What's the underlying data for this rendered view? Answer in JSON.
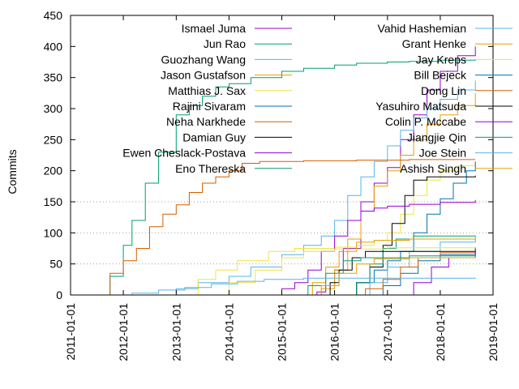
{
  "chart_data": {
    "type": "line",
    "ylabel": "Commits",
    "xlabel": "",
    "title": "",
    "ylim": [
      0,
      450
    ],
    "xlim": [
      "2011-01-01",
      "2019-01-01"
    ],
    "y_ticks": [
      0,
      50,
      100,
      150,
      200,
      250,
      300,
      350,
      400,
      450
    ],
    "x_ticks": [
      "2011-01-01",
      "2012-01-01",
      "2013-01-01",
      "2014-01-01",
      "2015-01-01",
      "2016-01-01",
      "2017-01-01",
      "2018-01-01",
      "2019-01-01"
    ],
    "grid": "horizontal dotted at 50, 100, 150",
    "legend_position": "top, two columns",
    "series": [
      {
        "name": "Ismael Juma",
        "color": "#9400d3",
        "points": [
          [
            "2015-06-01",
            0
          ],
          [
            "2015-09-01",
            5
          ],
          [
            "2015-11-01",
            15
          ],
          [
            "2016-01-01",
            40
          ],
          [
            "2016-03-01",
            75
          ],
          [
            "2016-07-01",
            150
          ],
          [
            "2016-10-01",
            180
          ],
          [
            "2017-01-01",
            205
          ],
          [
            "2017-04-01",
            250
          ],
          [
            "2017-07-01",
            290
          ],
          [
            "2017-10-01",
            330
          ],
          [
            "2018-01-01",
            360
          ],
          [
            "2018-05-01",
            385
          ],
          [
            "2018-09-01",
            400
          ]
        ]
      },
      {
        "name": "Jun Rao",
        "color": "#009e73",
        "points": [
          [
            "2011-07-15",
            0
          ],
          [
            "2011-10-01",
            30
          ],
          [
            "2012-01-01",
            80
          ],
          [
            "2012-03-01",
            120
          ],
          [
            "2012-06-01",
            180
          ],
          [
            "2012-09-01",
            230
          ],
          [
            "2013-01-01",
            290
          ],
          [
            "2013-04-01",
            305
          ],
          [
            "2013-07-01",
            320
          ],
          [
            "2013-10-01",
            335
          ],
          [
            "2014-01-01",
            340
          ],
          [
            "2014-06-01",
            350
          ],
          [
            "2015-01-01",
            360
          ],
          [
            "2015-06-01",
            365
          ],
          [
            "2016-01-01",
            370
          ],
          [
            "2016-06-01",
            373
          ],
          [
            "2017-01-01",
            375
          ],
          [
            "2017-06-01",
            376
          ],
          [
            "2018-01-01",
            378
          ],
          [
            "2018-09-01",
            380
          ]
        ]
      },
      {
        "name": "Guozhang Wang",
        "color": "#56b4e9",
        "points": [
          [
            "2012-08-01",
            0
          ],
          [
            "2013-01-01",
            10
          ],
          [
            "2013-06-01",
            20
          ],
          [
            "2014-01-01",
            30
          ],
          [
            "2014-06-01",
            45
          ],
          [
            "2015-01-01",
            65
          ],
          [
            "2015-06-01",
            80
          ],
          [
            "2015-10-01",
            95
          ],
          [
            "2016-01-01",
            120
          ],
          [
            "2016-04-01",
            160
          ],
          [
            "2016-07-01",
            190
          ],
          [
            "2016-10-01",
            215
          ],
          [
            "2017-01-01",
            240
          ],
          [
            "2017-04-01",
            265
          ],
          [
            "2017-07-01",
            285
          ],
          [
            "2017-10-01",
            300
          ],
          [
            "2018-01-01",
            315
          ],
          [
            "2018-05-01",
            330
          ],
          [
            "2018-09-01",
            345
          ]
        ]
      },
      {
        "name": "Jason Gustafson",
        "color": "#e69f00",
        "points": [
          [
            "2015-08-01",
            0
          ],
          [
            "2015-10-01",
            10
          ],
          [
            "2016-01-01",
            40
          ],
          [
            "2016-04-01",
            90
          ],
          [
            "2016-07-01",
            135
          ],
          [
            "2016-10-01",
            175
          ],
          [
            "2017-01-01",
            200
          ],
          [
            "2017-04-01",
            225
          ],
          [
            "2017-07-01",
            250
          ],
          [
            "2017-10-01",
            275
          ],
          [
            "2018-01-01",
            290
          ],
          [
            "2018-05-01",
            305
          ],
          [
            "2018-09-01",
            325
          ]
        ]
      },
      {
        "name": "Matthias J. Sax",
        "color": "#f0e442",
        "points": [
          [
            "2013-03-01",
            0
          ],
          [
            "2013-06-01",
            25
          ],
          [
            "2013-10-01",
            40
          ],
          [
            "2014-03-01",
            55
          ],
          [
            "2014-10-01",
            70
          ],
          [
            "2015-04-01",
            75
          ],
          [
            "2016-01-01",
            77
          ],
          [
            "2016-06-01",
            80
          ],
          [
            "2016-10-01",
            88
          ],
          [
            "2017-01-01",
            100
          ],
          [
            "2017-04-01",
            130
          ],
          [
            "2017-07-01",
            160
          ],
          [
            "2017-10-01",
            185
          ],
          [
            "2018-01-01",
            200
          ],
          [
            "2018-05-01",
            208
          ],
          [
            "2018-09-01",
            215
          ]
        ]
      },
      {
        "name": "Rajini Sivaram",
        "color": "#0072b2",
        "points": [
          [
            "2016-02-01",
            0
          ],
          [
            "2016-06-01",
            20
          ],
          [
            "2016-10-01",
            40
          ],
          [
            "2017-01-01",
            55
          ],
          [
            "2017-04-01",
            70
          ],
          [
            "2017-07-01",
            100
          ],
          [
            "2017-10-01",
            130
          ],
          [
            "2018-01-01",
            155
          ],
          [
            "2018-04-01",
            180
          ],
          [
            "2018-07-01",
            200
          ],
          [
            "2018-09-01",
            215
          ]
        ]
      },
      {
        "name": "Neha Narkhede",
        "color": "#d55e00",
        "points": [
          [
            "2011-07-15",
            0
          ],
          [
            "2011-10-01",
            35
          ],
          [
            "2012-01-01",
            55
          ],
          [
            "2012-04-01",
            75
          ],
          [
            "2012-07-01",
            110
          ],
          [
            "2012-10-01",
            130
          ],
          [
            "2013-01-01",
            145
          ],
          [
            "2013-04-01",
            165
          ],
          [
            "2013-07-01",
            180
          ],
          [
            "2013-10-01",
            190
          ],
          [
            "2014-01-01",
            200
          ],
          [
            "2014-04-01",
            212
          ],
          [
            "2014-08-01",
            215
          ],
          [
            "2015-06-01",
            216
          ],
          [
            "2016-06-01",
            217
          ],
          [
            "2017-06-01",
            218
          ],
          [
            "2018-09-01",
            218
          ]
        ]
      },
      {
        "name": "Damian Guy",
        "color": "#000000",
        "points": [
          [
            "2016-04-01",
            0
          ],
          [
            "2016-06-01",
            20
          ],
          [
            "2016-09-01",
            45
          ],
          [
            "2016-12-01",
            80
          ],
          [
            "2017-02-01",
            115
          ],
          [
            "2017-05-01",
            160
          ],
          [
            "2017-07-01",
            185
          ],
          [
            "2017-10-01",
            190
          ],
          [
            "2018-09-01",
            192
          ]
        ]
      },
      {
        "name": "Ewen Cheslack-Postava",
        "color": "#9400d3",
        "points": [
          [
            "2014-08-01",
            0
          ],
          [
            "2015-01-01",
            10
          ],
          [
            "2015-04-01",
            20
          ],
          [
            "2015-07-01",
            40
          ],
          [
            "2015-10-01",
            70
          ],
          [
            "2016-01-01",
            95
          ],
          [
            "2016-04-01",
            120
          ],
          [
            "2016-07-01",
            135
          ],
          [
            "2016-10-01",
            140
          ],
          [
            "2017-01-01",
            143
          ],
          [
            "2017-06-01",
            146
          ],
          [
            "2018-01-01",
            149
          ],
          [
            "2018-09-01",
            153
          ]
        ]
      },
      {
        "name": "Eno Thereska",
        "color": "#009e73",
        "points": [
          [
            "2016-03-01",
            0
          ],
          [
            "2016-06-01",
            20
          ],
          [
            "2016-09-01",
            50
          ],
          [
            "2016-12-01",
            75
          ],
          [
            "2017-03-01",
            90
          ],
          [
            "2017-07-01",
            95
          ],
          [
            "2018-09-01",
            96
          ]
        ]
      },
      {
        "name": "Vahid Hashemian",
        "color": "#56b4e9",
        "points": [
          [
            "2016-05-01",
            0
          ],
          [
            "2016-09-01",
            20
          ],
          [
            "2017-01-01",
            45
          ],
          [
            "2017-06-01",
            70
          ],
          [
            "2018-01-01",
            85
          ],
          [
            "2018-09-01",
            95
          ]
        ]
      },
      {
        "name": "Grant Henke",
        "color": "#e69f00",
        "points": [
          [
            "2015-05-01",
            0
          ],
          [
            "2015-08-01",
            20
          ],
          [
            "2015-11-01",
            45
          ],
          [
            "2016-02-01",
            70
          ],
          [
            "2016-06-01",
            85
          ],
          [
            "2016-10-01",
            88
          ],
          [
            "2017-06-01",
            90
          ],
          [
            "2018-09-01",
            92
          ]
        ]
      },
      {
        "name": "Jay Kreps",
        "color": "#f0e442",
        "points": [
          [
            "2013-06-01",
            0
          ],
          [
            "2014-01-01",
            20
          ],
          [
            "2014-07-01",
            40
          ],
          [
            "2015-01-01",
            60
          ],
          [
            "2015-06-01",
            70
          ],
          [
            "2016-01-01",
            74
          ],
          [
            "2017-01-01",
            76
          ],
          [
            "2018-09-01",
            78
          ]
        ]
      },
      {
        "name": "Bill Bejeck",
        "color": "#0072b2",
        "points": [
          [
            "2016-08-01",
            0
          ],
          [
            "2016-12-01",
            15
          ],
          [
            "2017-04-01",
            35
          ],
          [
            "2017-08-01",
            55
          ],
          [
            "2018-01-01",
            65
          ],
          [
            "2018-09-01",
            72
          ]
        ]
      },
      {
        "name": "Dong Lin",
        "color": "#d55e00",
        "points": [
          [
            "2016-04-01",
            0
          ],
          [
            "2016-08-01",
            10
          ],
          [
            "2016-12-01",
            25
          ],
          [
            "2017-04-01",
            45
          ],
          [
            "2017-08-01",
            60
          ],
          [
            "2018-01-01",
            68
          ],
          [
            "2018-09-01",
            76
          ]
        ]
      },
      {
        "name": "Yasuhiro Matsuda",
        "color": "#000000",
        "points": [
          [
            "2015-09-01",
            0
          ],
          [
            "2015-12-01",
            20
          ],
          [
            "2016-02-01",
            40
          ],
          [
            "2016-05-01",
            60
          ],
          [
            "2016-08-01",
            70
          ],
          [
            "2018-09-01",
            72
          ]
        ]
      },
      {
        "name": "Colin P. Mccabe",
        "color": "#9400d3",
        "points": [
          [
            "2017-03-01",
            0
          ],
          [
            "2017-07-01",
            20
          ],
          [
            "2017-11-01",
            45
          ],
          [
            "2018-03-01",
            60
          ],
          [
            "2018-09-01",
            75
          ]
        ]
      },
      {
        "name": "Jiangjie Qin",
        "color": "#009e73",
        "points": [
          [
            "2015-03-01",
            0
          ],
          [
            "2015-07-01",
            15
          ],
          [
            "2015-11-01",
            35
          ],
          [
            "2016-03-01",
            55
          ],
          [
            "2016-07-01",
            60
          ],
          [
            "2017-06-01",
            63
          ],
          [
            "2018-09-01",
            65
          ]
        ]
      },
      {
        "name": "Joe Stein",
        "color": "#56b4e9",
        "points": [
          [
            "2011-09-01",
            0
          ],
          [
            "2012-03-01",
            3
          ],
          [
            "2012-09-01",
            8
          ],
          [
            "2013-03-01",
            12
          ],
          [
            "2013-09-01",
            18
          ],
          [
            "2014-03-01",
            22
          ],
          [
            "2014-09-01",
            25
          ],
          [
            "2015-06-01",
            27
          ],
          [
            "2018-09-01",
            28
          ]
        ]
      },
      {
        "name": "Ashish Singh",
        "color": "#e69f00",
        "points": [
          [
            "2015-06-01",
            0
          ],
          [
            "2015-10-01",
            15
          ],
          [
            "2016-02-01",
            35
          ],
          [
            "2016-06-01",
            50
          ],
          [
            "2016-10-01",
            58
          ],
          [
            "2017-06-01",
            60
          ],
          [
            "2018-09-01",
            62
          ]
        ]
      }
    ]
  }
}
